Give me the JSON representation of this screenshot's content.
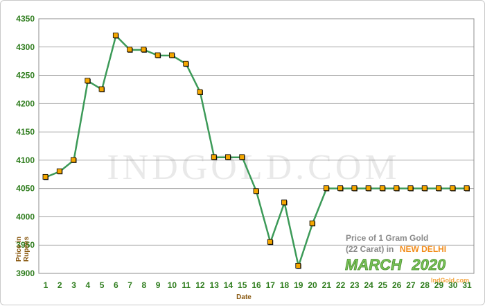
{
  "chart_data": {
    "type": "line",
    "xlabel": "Date",
    "ylabel": "Price in Rupees",
    "ylim": [
      3900,
      4350
    ],
    "ytick_step": 50,
    "grid": true,
    "categories": [
      1,
      2,
      3,
      4,
      5,
      6,
      7,
      8,
      9,
      10,
      11,
      12,
      13,
      14,
      15,
      16,
      17,
      18,
      19,
      20,
      21,
      22,
      23,
      24,
      25,
      26,
      27,
      28,
      29,
      30,
      31
    ],
    "series": [
      {
        "values": [
          4070,
          4080,
          4100,
          4240,
          4225,
          4320,
          4295,
          4295,
          4285,
          4285,
          4270,
          4220,
          4105,
          4105,
          4105,
          4045,
          3955,
          4025,
          3913,
          3988,
          4050,
          4050,
          4050,
          4050,
          4050,
          4050,
          4050,
          4050,
          4050,
          4050,
          4050
        ]
      }
    ]
  },
  "caption": {
    "line1": "Price of 1 Gram Gold",
    "line2_prefix": "(22 Carat) in",
    "city": "NEW DELHI",
    "month": "MARCH",
    "year": "2020",
    "site": "IndGold.com"
  },
  "watermark": "INDGOLD.COM",
  "colors": {
    "line": "#3c9a58",
    "marker_fill": "#f5a700",
    "marker_stroke": "#000000",
    "tick_text": "#2f7d1e",
    "axis_title": "#8a5a12"
  }
}
